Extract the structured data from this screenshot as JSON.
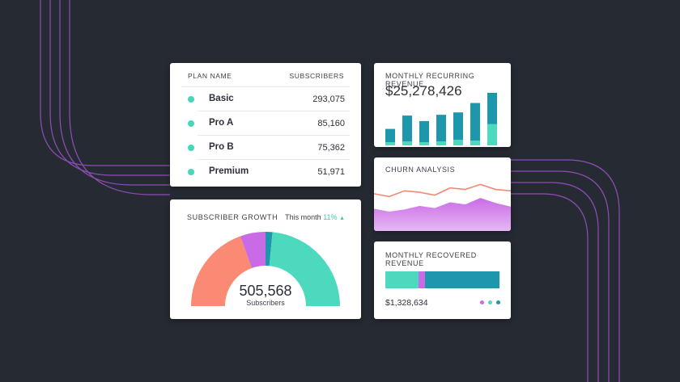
{
  "colors": {
    "background": "#262a33",
    "teal": "#4dd9bd",
    "blue": "#1e97ad",
    "purple": "#c96be6",
    "coral": "#fb8a74",
    "line": "#9a52c4"
  },
  "plans": {
    "header_name": "PLAN NAME",
    "header_subs": "SUBSCRIBERS",
    "rows": [
      {
        "name": "Basic",
        "subscribers": "293,075"
      },
      {
        "name": "Pro A",
        "subscribers": "85,160"
      },
      {
        "name": "Pro B",
        "subscribers": "75,362"
      },
      {
        "name": "Premium",
        "subscribers": "51,971"
      }
    ]
  },
  "growth": {
    "title": "SUBSCRIBER GROWTH",
    "period_label": "This month",
    "change": "11%",
    "trend_icon": "triangle-up-icon",
    "total": "505,568",
    "total_label": "Subscribers"
  },
  "mrr": {
    "title": "MONTHLY RECURRING REVENUE",
    "value": "$25,278,426"
  },
  "churn": {
    "title": "CHURN ANALYSIS"
  },
  "recovered": {
    "title": "MONTHLY RECOVERED REVENUE",
    "value": "$1,328,634"
  },
  "chart_data": [
    {
      "type": "pie",
      "variant": "half-donut",
      "labels": [],
      "slices": [
        {
          "value": 0.39,
          "color": "#fb8a74"
        },
        {
          "value": 0.11,
          "color": "#c96be6"
        },
        {
          "value": 0.03,
          "color": "#1e97ad"
        },
        {
          "value": 0.47,
          "color": "#4dd9bd"
        }
      ]
    },
    {
      "type": "bar",
      "stacked": true,
      "categories": [
        "1",
        "2",
        "3",
        "4",
        "5",
        "6",
        "7"
      ],
      "series": [
        {
          "values": [
            4,
            5,
            4,
            5,
            7,
            6,
            27
          ],
          "color": "#4dd9bd"
        },
        {
          "values": [
            17,
            33,
            27,
            34,
            35,
            48,
            40
          ],
          "color": "#1e97ad"
        }
      ],
      "ylim": [
        0,
        70
      ]
    },
    {
      "type": "area",
      "x": [
        0,
        1,
        2,
        3,
        4,
        5,
        6,
        7,
        8,
        9
      ],
      "series": [
        {
          "values": [
            31,
            27,
            30,
            35,
            32,
            40,
            37,
            46,
            39,
            34
          ],
          "color": "#c96be6"
        },
        {
          "values": [
            52,
            48,
            56,
            54,
            50,
            60,
            58,
            65,
            58,
            56
          ],
          "color": "#f08a74"
        }
      ],
      "ylim": [
        0,
        80
      ]
    },
    {
      "type": "bar",
      "stacked": true,
      "orientation": "horizontal",
      "series": [
        {
          "values": [
            29
          ],
          "color": "#4dd9bd"
        },
        {
          "values": [
            6
          ],
          "color": "#c96be6"
        },
        {
          "values": [
            65
          ],
          "color": "#1e97ad"
        }
      ],
      "xlim": [
        0,
        100
      ]
    }
  ]
}
